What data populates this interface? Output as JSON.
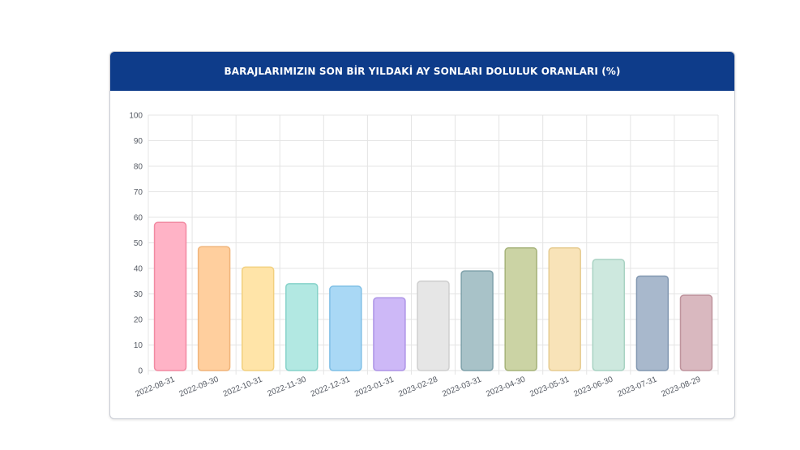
{
  "header": {
    "title": "BARAJLARIMIZIN SON BİR YILDAKİ AY SONLARI DOLULUK ORANLARI (%)"
  },
  "chart_data": {
    "type": "bar",
    "title": "BARAJLARIMIZIN SON BİR YILDAKİ AY SONLARI DOLULUK ORANLARI (%)",
    "xlabel": "",
    "ylabel": "",
    "ylim": [
      0,
      100
    ],
    "yticks": [
      0,
      10,
      20,
      30,
      40,
      50,
      60,
      70,
      80,
      90,
      100
    ],
    "grid": true,
    "categories": [
      "2022-08-31",
      "2022-09-30",
      "2022-10-31",
      "2022-11-30",
      "2022-12-31",
      "2023-01-31",
      "2023-02-28",
      "2023-03-31",
      "2023-04-30",
      "2023-05-31",
      "2023-06-30",
      "2023-07-31",
      "2023-08-29"
    ],
    "values": [
      58,
      48.5,
      40.5,
      34,
      33,
      28.5,
      35,
      39,
      48,
      48,
      43.5,
      37,
      29.5
    ],
    "colors": [
      "#ffb3c6",
      "#ffcf9e",
      "#ffe4a8",
      "#b2e8e2",
      "#a9d8f5",
      "#cdb8f7",
      "#e6e6e6",
      "#a8c2c8",
      "#cbd3a4",
      "#f8e3b8",
      "#cde8de",
      "#a8b8cc",
      "#d9b8bf"
    ],
    "borders": [
      "#f28aa2",
      "#f0b47a",
      "#f2d07f",
      "#86d2c9",
      "#7fbfe6",
      "#ad94e6",
      "#cfcfcf",
      "#7fa1aa",
      "#a6b37a",
      "#e6cb90",
      "#a8d2c2",
      "#8197b0",
      "#bf949d"
    ]
  }
}
